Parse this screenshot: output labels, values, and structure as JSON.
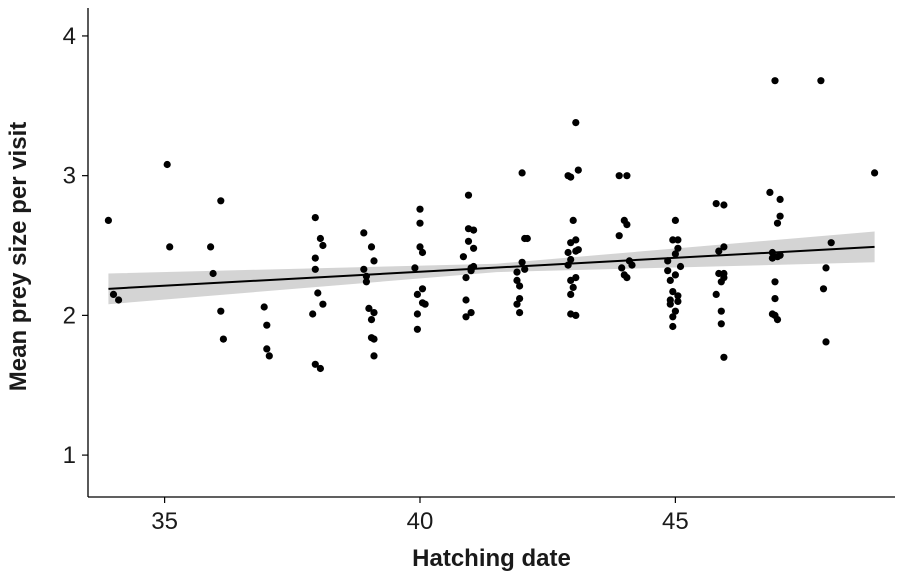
{
  "chart_data": {
    "type": "scatter",
    "xlabel": "Hatching date",
    "ylabel": "Mean prey size per visit",
    "xlim": [
      33.5,
      49.3
    ],
    "ylim": [
      0.7,
      4.2
    ],
    "xticks": [
      35,
      40,
      45
    ],
    "yticks": [
      1,
      2,
      3,
      4
    ],
    "grid": false,
    "legend": "none",
    "colors": {
      "points": "#000000",
      "line": "#000000",
      "band": "#cccccc",
      "axis": "#000000"
    },
    "points": [
      {
        "x": 33.9,
        "y": 2.68
      },
      {
        "x": 34.0,
        "y": 2.15
      },
      {
        "x": 34.1,
        "y": 2.11
      },
      {
        "x": 35.05,
        "y": 3.08
      },
      {
        "x": 35.1,
        "y": 2.49
      },
      {
        "x": 35.9,
        "y": 2.49
      },
      {
        "x": 35.95,
        "y": 2.3
      },
      {
        "x": 36.1,
        "y": 2.82
      },
      {
        "x": 36.1,
        "y": 2.03
      },
      {
        "x": 36.15,
        "y": 1.83
      },
      {
        "x": 36.95,
        "y": 2.06
      },
      {
        "x": 37.0,
        "y": 1.93
      },
      {
        "x": 37.0,
        "y": 1.76
      },
      {
        "x": 37.05,
        "y": 1.71
      },
      {
        "x": 37.9,
        "y": 2.01
      },
      {
        "x": 37.95,
        "y": 2.7
      },
      {
        "x": 37.95,
        "y": 2.41
      },
      {
        "x": 37.95,
        "y": 2.33
      },
      {
        "x": 38.0,
        "y": 2.16
      },
      {
        "x": 38.05,
        "y": 2.55
      },
      {
        "x": 38.1,
        "y": 2.5
      },
      {
        "x": 38.1,
        "y": 2.08
      },
      {
        "x": 37.95,
        "y": 1.65
      },
      {
        "x": 38.05,
        "y": 1.62
      },
      {
        "x": 38.9,
        "y": 2.59
      },
      {
        "x": 38.9,
        "y": 2.33
      },
      {
        "x": 38.95,
        "y": 2.28
      },
      {
        "x": 38.95,
        "y": 2.24
      },
      {
        "x": 39.0,
        "y": 2.05
      },
      {
        "x": 39.05,
        "y": 2.49
      },
      {
        "x": 39.05,
        "y": 1.97
      },
      {
        "x": 39.05,
        "y": 1.84
      },
      {
        "x": 39.1,
        "y": 2.39
      },
      {
        "x": 39.1,
        "y": 2.02
      },
      {
        "x": 39.1,
        "y": 1.83
      },
      {
        "x": 39.1,
        "y": 1.71
      },
      {
        "x": 39.9,
        "y": 2.34
      },
      {
        "x": 39.95,
        "y": 2.15
      },
      {
        "x": 39.95,
        "y": 2.01
      },
      {
        "x": 39.95,
        "y": 1.9
      },
      {
        "x": 40.0,
        "y": 2.76
      },
      {
        "x": 40.0,
        "y": 2.66
      },
      {
        "x": 40.0,
        "y": 2.49
      },
      {
        "x": 40.05,
        "y": 2.45
      },
      {
        "x": 40.05,
        "y": 2.19
      },
      {
        "x": 40.05,
        "y": 2.09
      },
      {
        "x": 40.1,
        "y": 2.08
      },
      {
        "x": 40.85,
        "y": 2.42
      },
      {
        "x": 40.9,
        "y": 2.27
      },
      {
        "x": 40.9,
        "y": 2.11
      },
      {
        "x": 40.9,
        "y": 1.99
      },
      {
        "x": 40.95,
        "y": 2.86
      },
      {
        "x": 40.95,
        "y": 2.62
      },
      {
        "x": 40.95,
        "y": 2.53
      },
      {
        "x": 41.0,
        "y": 2.34
      },
      {
        "x": 41.0,
        "y": 2.32
      },
      {
        "x": 41.0,
        "y": 2.02
      },
      {
        "x": 41.05,
        "y": 2.61
      },
      {
        "x": 41.05,
        "y": 2.48
      },
      {
        "x": 41.05,
        "y": 2.35
      },
      {
        "x": 41.9,
        "y": 2.31
      },
      {
        "x": 41.9,
        "y": 2.25
      },
      {
        "x": 41.9,
        "y": 2.08
      },
      {
        "x": 41.95,
        "y": 2.21
      },
      {
        "x": 41.95,
        "y": 2.12
      },
      {
        "x": 41.95,
        "y": 2.02
      },
      {
        "x": 42.0,
        "y": 3.02
      },
      {
        "x": 42.0,
        "y": 2.38
      },
      {
        "x": 42.05,
        "y": 2.55
      },
      {
        "x": 42.1,
        "y": 2.55
      },
      {
        "x": 42.05,
        "y": 2.33
      },
      {
        "x": 42.9,
        "y": 3.0
      },
      {
        "x": 42.9,
        "y": 2.45
      },
      {
        "x": 42.9,
        "y": 2.36
      },
      {
        "x": 42.95,
        "y": 2.99
      },
      {
        "x": 42.95,
        "y": 2.52
      },
      {
        "x": 42.95,
        "y": 2.4
      },
      {
        "x": 42.95,
        "y": 2.25
      },
      {
        "x": 42.95,
        "y": 2.15
      },
      {
        "x": 42.95,
        "y": 2.01
      },
      {
        "x": 43.0,
        "y": 2.68
      },
      {
        "x": 43.0,
        "y": 2.2
      },
      {
        "x": 43.05,
        "y": 3.38
      },
      {
        "x": 43.05,
        "y": 2.54
      },
      {
        "x": 43.05,
        "y": 2.46
      },
      {
        "x": 43.05,
        "y": 2.27
      },
      {
        "x": 43.05,
        "y": 2.0
      },
      {
        "x": 43.1,
        "y": 3.04
      },
      {
        "x": 43.1,
        "y": 2.47
      },
      {
        "x": 43.9,
        "y": 3.0
      },
      {
        "x": 43.9,
        "y": 2.57
      },
      {
        "x": 43.95,
        "y": 2.34
      },
      {
        "x": 44.0,
        "y": 2.68
      },
      {
        "x": 44.0,
        "y": 2.29
      },
      {
        "x": 44.05,
        "y": 3.0
      },
      {
        "x": 44.05,
        "y": 2.65
      },
      {
        "x": 44.05,
        "y": 2.27
      },
      {
        "x": 44.1,
        "y": 2.39
      },
      {
        "x": 44.15,
        "y": 2.36
      },
      {
        "x": 44.85,
        "y": 2.39
      },
      {
        "x": 44.85,
        "y": 2.32
      },
      {
        "x": 44.9,
        "y": 2.25
      },
      {
        "x": 44.9,
        "y": 2.11
      },
      {
        "x": 44.9,
        "y": 2.08
      },
      {
        "x": 44.95,
        "y": 2.54
      },
      {
        "x": 44.95,
        "y": 2.17
      },
      {
        "x": 44.95,
        "y": 1.99
      },
      {
        "x": 44.95,
        "y": 1.92
      },
      {
        "x": 45.0,
        "y": 2.68
      },
      {
        "x": 45.0,
        "y": 2.44
      },
      {
        "x": 45.0,
        "y": 2.29
      },
      {
        "x": 45.0,
        "y": 2.03
      },
      {
        "x": 45.05,
        "y": 2.54
      },
      {
        "x": 45.05,
        "y": 2.48
      },
      {
        "x": 45.05,
        "y": 2.14
      },
      {
        "x": 45.05,
        "y": 2.1
      },
      {
        "x": 45.1,
        "y": 2.35
      },
      {
        "x": 45.8,
        "y": 2.15
      },
      {
        "x": 45.8,
        "y": 2.8
      },
      {
        "x": 45.85,
        "y": 2.46
      },
      {
        "x": 45.85,
        "y": 2.3
      },
      {
        "x": 45.9,
        "y": 2.24
      },
      {
        "x": 45.9,
        "y": 2.03
      },
      {
        "x": 45.9,
        "y": 1.94
      },
      {
        "x": 45.95,
        "y": 2.49
      },
      {
        "x": 45.95,
        "y": 2.3
      },
      {
        "x": 45.95,
        "y": 2.27
      },
      {
        "x": 45.95,
        "y": 2.79
      },
      {
        "x": 45.95,
        "y": 1.7
      },
      {
        "x": 46.85,
        "y": 2.88
      },
      {
        "x": 46.9,
        "y": 2.45
      },
      {
        "x": 46.9,
        "y": 2.41
      },
      {
        "x": 46.9,
        "y": 2.01
      },
      {
        "x": 46.95,
        "y": 3.68
      },
      {
        "x": 46.95,
        "y": 2.24
      },
      {
        "x": 46.95,
        "y": 2.12
      },
      {
        "x": 46.95,
        "y": 2.0
      },
      {
        "x": 47.0,
        "y": 2.66
      },
      {
        "x": 47.0,
        "y": 2.42
      },
      {
        "x": 47.0,
        "y": 1.97
      },
      {
        "x": 47.05,
        "y": 2.83
      },
      {
        "x": 47.05,
        "y": 2.71
      },
      {
        "x": 47.05,
        "y": 2.43
      },
      {
        "x": 47.85,
        "y": 3.68
      },
      {
        "x": 47.9,
        "y": 2.19
      },
      {
        "x": 47.95,
        "y": 2.34
      },
      {
        "x": 47.95,
        "y": 1.81
      },
      {
        "x": 48.05,
        "y": 2.52
      },
      {
        "x": 48.9,
        "y": 3.02
      }
    ],
    "fit": {
      "x": [
        33.9,
        48.9
      ],
      "y": [
        2.19,
        2.49
      ],
      "lower": [
        2.08,
        2.38
      ],
      "upper": [
        2.3,
        2.6
      ],
      "mid_x": 41.5,
      "mid_lower": 2.31,
      "mid_upper": 2.37
    }
  }
}
